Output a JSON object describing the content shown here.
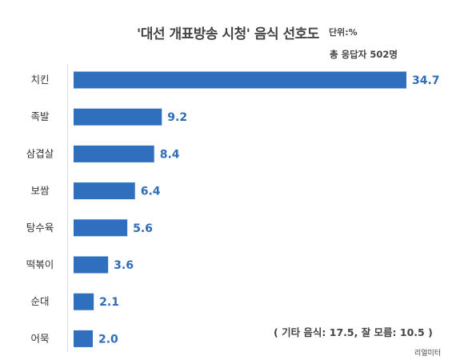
{
  "header": {
    "title": "'대선 개표방송 시청' 음식 선호도",
    "unit": "단위:%",
    "respondents": "총 응답자 502명"
  },
  "footer": {
    "other_note": "( 기타 음식: 17.5, 잘 모름: 10.5 )",
    "source": "리얼미터"
  },
  "colors": {
    "bar": "#2f6fbe",
    "value_text": "#2e6db5"
  },
  "chart_data": {
    "type": "bar",
    "orientation": "horizontal",
    "title": "'대선 개표방송 시청' 음식 선호도",
    "unit": "단위:%",
    "categories": [
      "치킨",
      "족발",
      "삼겹살",
      "보쌈",
      "탕수육",
      "떡볶이",
      "순대",
      "어묵"
    ],
    "values": [
      34.7,
      9.2,
      8.4,
      6.4,
      5.6,
      3.6,
      2.1,
      2.0
    ],
    "value_labels": [
      "34.7",
      "9.2",
      "8.4",
      "6.4",
      "5.6",
      "3.6",
      "2.1",
      "2.0"
    ],
    "xlim": [
      0,
      34.7
    ],
    "grid": false,
    "legend": "none"
  }
}
